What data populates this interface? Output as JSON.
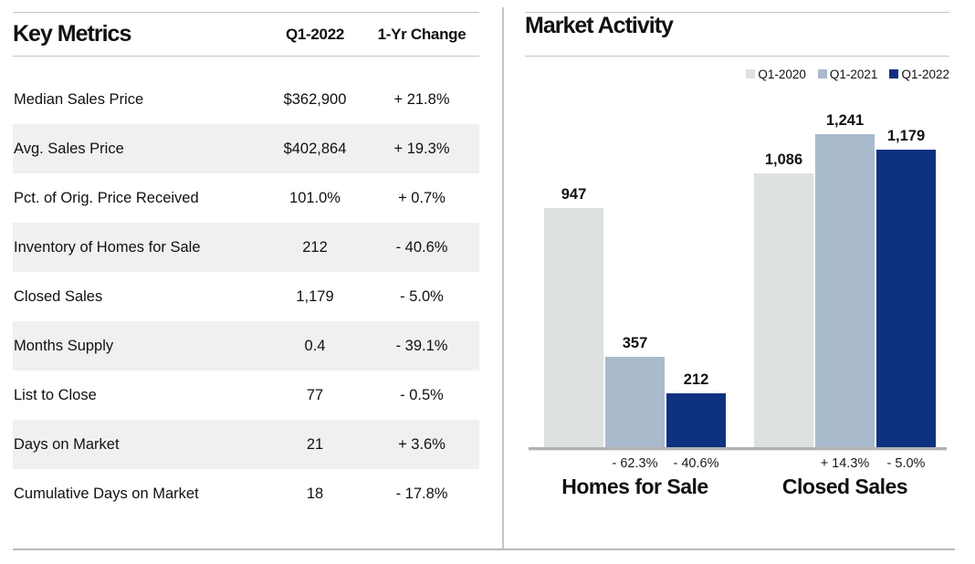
{
  "key_metrics": {
    "title": "Key Metrics",
    "columns": {
      "value_col": "Q1-2022",
      "change_col": "1-Yr Change"
    },
    "rows": [
      {
        "label": "Median Sales Price",
        "value": "$362,900",
        "change": "+ 21.8%"
      },
      {
        "label": "Avg. Sales Price",
        "value": "$402,864",
        "change": "+ 19.3%"
      },
      {
        "label": "Pct. of Orig. Price Received",
        "value": "101.0%",
        "change": "+ 0.7%"
      },
      {
        "label": "Inventory of Homes for Sale",
        "value": "212",
        "change": "- 40.6%"
      },
      {
        "label": "Closed Sales",
        "value": "1,179",
        "change": "- 5.0%"
      },
      {
        "label": "Months Supply",
        "value": "0.4",
        "change": "- 39.1%"
      },
      {
        "label": "List to Close",
        "value": "77",
        "change": "- 0.5%"
      },
      {
        "label": "Days on Market",
        "value": "21",
        "change": "+ 3.6%"
      },
      {
        "label": "Cumulative Days on Market",
        "value": "18",
        "change": "- 17.8%"
      }
    ]
  },
  "chart_data": {
    "type": "bar",
    "title": "Market Activity",
    "categories": [
      "Homes for Sale",
      "Closed Sales"
    ],
    "legend": [
      "Q1-2020",
      "Q1-2021",
      "Q1-2022"
    ],
    "legend_position": "top-right",
    "grid": false,
    "ylim": [
      0,
      1241
    ],
    "series_colors": {
      "Q1-2020": "#dde1e0",
      "Q1-2021": "#a9bacd",
      "Q1-2022": "#0e3180"
    },
    "series": [
      {
        "name": "Q1-2020",
        "values": [
          947,
          1086
        ],
        "value_labels": [
          "947",
          "1,086"
        ],
        "pct_change": [
          null,
          null
        ]
      },
      {
        "name": "Q1-2021",
        "values": [
          357,
          1241
        ],
        "value_labels": [
          "357",
          "1,241"
        ],
        "pct_change": [
          "- 62.3%",
          "+ 14.3%"
        ]
      },
      {
        "name": "Q1-2022",
        "values": [
          212,
          1179
        ],
        "value_labels": [
          "212",
          "1,179"
        ],
        "pct_change": [
          "- 40.6%",
          "- 5.0%"
        ]
      }
    ],
    "colors": {
      "baseline": "#b2b2b2"
    }
  }
}
